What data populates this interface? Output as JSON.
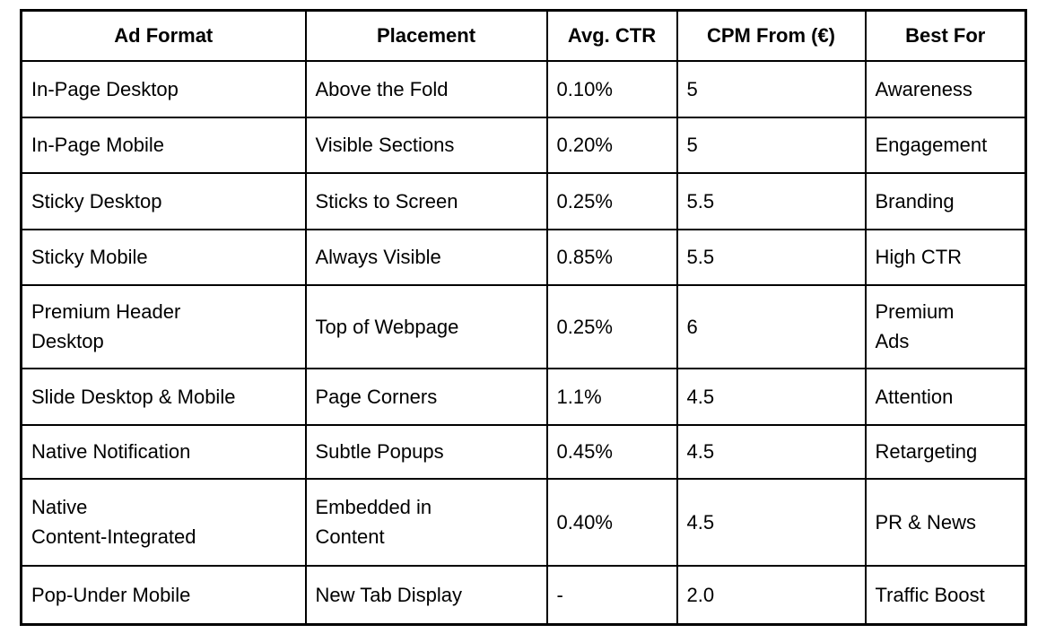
{
  "page": {
    "background_color": "#ffffff",
    "border_color": "#000000",
    "text_color": "#000000"
  },
  "table": {
    "columns": [
      "Ad Format",
      "Placement",
      "Avg. CTR",
      "CPM From (€)",
      "Best For"
    ],
    "rows": [
      [
        "In-Page Desktop",
        "Above the Fold",
        "0.10%",
        "5",
        "Awareness"
      ],
      [
        "In-Page Mobile",
        "Visible Sections",
        "0.20%",
        "5",
        "Engagement"
      ],
      [
        "Sticky Desktop",
        "Sticks to Screen",
        "0.25%",
        "5.5",
        "Branding"
      ],
      [
        "Sticky Mobile",
        "Always Visible",
        "0.85%",
        "5.5",
        "High CTR"
      ],
      [
        "Premium Header\nDesktop",
        "Top of Webpage",
        "0.25%",
        "6",
        "Premium\nAds"
      ],
      [
        "Slide Desktop & Mobile",
        "Page Corners",
        "1.1%",
        "4.5",
        "Attention"
      ],
      [
        "Native Notification",
        "Subtle Popups",
        "0.45%",
        "4.5",
        "Retargeting"
      ],
      [
        "Native\nContent-Integrated",
        "Embedded in\nContent",
        "0.40%",
        "4.5",
        "PR & News"
      ],
      [
        "Pop-Under Mobile",
        "New Tab Display",
        "-",
        "2.0",
        "Traffic Boost"
      ]
    ]
  },
  "chart_data": {
    "type": "table",
    "columns": [
      "Ad Format",
      "Placement",
      "Avg. CTR",
      "CPM From (€)",
      "Best For"
    ],
    "rows": [
      [
        "In-Page Desktop",
        "Above the Fold",
        "0.10%",
        "5",
        "Awareness"
      ],
      [
        "In-Page Mobile",
        "Visible Sections",
        "0.20%",
        "5",
        "Engagement"
      ],
      [
        "Sticky Desktop",
        "Sticks to Screen",
        "0.25%",
        "5.5",
        "Branding"
      ],
      [
        "Sticky Mobile",
        "Always Visible",
        "0.85%",
        "5.5",
        "High CTR"
      ],
      [
        "Premium Header Desktop",
        "Top of Webpage",
        "0.25%",
        "6",
        "Premium Ads"
      ],
      [
        "Slide Desktop & Mobile",
        "Page Corners",
        "1.1%",
        "4.5",
        "Attention"
      ],
      [
        "Native Notification",
        "Subtle Popups",
        "0.45%",
        "4.5",
        "Retargeting"
      ],
      [
        "Native Content-Integrated",
        "Embedded in Content",
        "0.40%",
        "4.5",
        "PR & News"
      ],
      [
        "Pop-Under Mobile",
        "New Tab Display",
        "-",
        "2.0",
        "Traffic Boost"
      ]
    ]
  }
}
